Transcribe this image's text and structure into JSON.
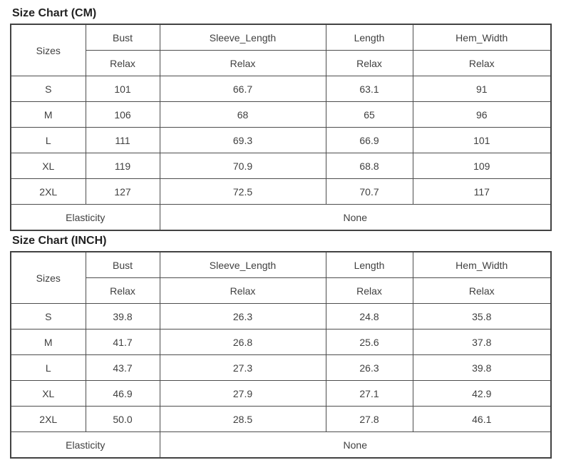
{
  "tables": [
    {
      "title": "Size Chart (CM)",
      "header": {
        "sizes_label": "Sizes",
        "columns": [
          "Bust",
          "Sleeve_Length",
          "Length",
          "Hem_Width"
        ],
        "sub_labels": [
          "Relax",
          "Relax",
          "Relax",
          "Relax"
        ]
      },
      "rows": [
        {
          "size": "S",
          "values": [
            "101",
            "66.7",
            "63.1",
            "91"
          ]
        },
        {
          "size": "M",
          "values": [
            "106",
            "68",
            "65",
            "96"
          ]
        },
        {
          "size": "L",
          "values": [
            "111",
            "69.3",
            "66.9",
            "101"
          ]
        },
        {
          "size": "XL",
          "values": [
            "119",
            "70.9",
            "68.8",
            "109"
          ]
        },
        {
          "size": "2XL",
          "values": [
            "127",
            "72.5",
            "70.7",
            "117"
          ]
        }
      ],
      "footer": {
        "label": "Elasticity",
        "value": "None"
      }
    },
    {
      "title": "Size Chart (INCH)",
      "header": {
        "sizes_label": "Sizes",
        "columns": [
          "Bust",
          "Sleeve_Length",
          "Length",
          "Hem_Width"
        ],
        "sub_labels": [
          "Relax",
          "Relax",
          "Relax",
          "Relax"
        ]
      },
      "rows": [
        {
          "size": "S",
          "values": [
            "39.8",
            "26.3",
            "24.8",
            "35.8"
          ]
        },
        {
          "size": "M",
          "values": [
            "41.7",
            "26.8",
            "25.6",
            "37.8"
          ]
        },
        {
          "size": "L",
          "values": [
            "43.7",
            "27.3",
            "26.3",
            "39.8"
          ]
        },
        {
          "size": "XL",
          "values": [
            "46.9",
            "27.9",
            "27.1",
            "42.9"
          ]
        },
        {
          "size": "2XL",
          "values": [
            "50.0",
            "28.5",
            "27.8",
            "46.1"
          ]
        }
      ],
      "footer": {
        "label": "Elasticity",
        "value": "None"
      }
    }
  ],
  "colors": {
    "text": "#404040",
    "title": "#222222",
    "border": "#4d4d4d",
    "background": "#ffffff"
  }
}
